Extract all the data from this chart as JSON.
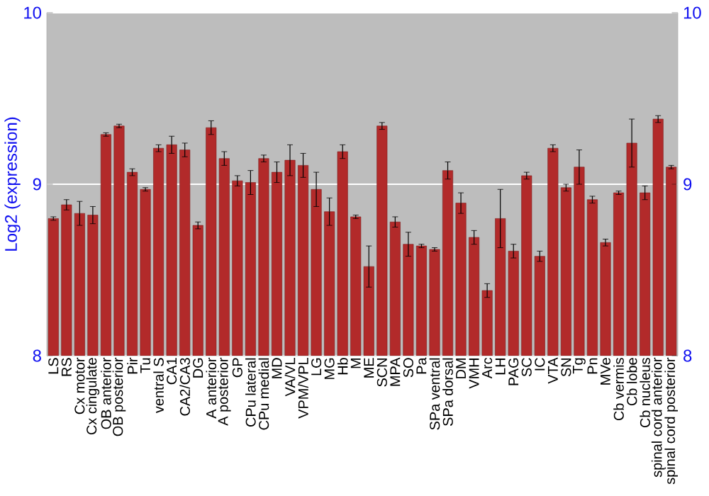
{
  "chart_data": {
    "type": "bar",
    "ylabel": "Log2 (expression)",
    "color": "#b22a2a",
    "grid": "y",
    "categories": [
      "LS",
      "RS",
      "Cx motor",
      "Cx cingulate",
      "OB anterior",
      "OB posterior",
      "Pir",
      "Tu",
      "ventral S",
      "CA1",
      "CA2/CA3",
      "DG",
      "A anterior",
      "A posterior",
      "GP",
      "CPu lateral",
      "CPu medial",
      "MD",
      "VA/VL",
      "VPM/VPL",
      "LG",
      "MG",
      "Hb",
      "M",
      "ME",
      "SCN",
      "MPA",
      "SO",
      "Pa",
      "SPa ventral",
      "SPa dorsal",
      "DM",
      "VMH",
      "Arc",
      "LH",
      "PAG",
      "SC",
      "IC",
      "VTA",
      "SN",
      "Tg",
      "Pn",
      "MVe",
      "Cb vermis",
      "Cb lobe",
      "Cb nucleus",
      "spinal cord anterior",
      "spinal cord posterior"
    ],
    "values": [
      8.8,
      8.88,
      8.83,
      8.82,
      9.29,
      9.34,
      9.07,
      8.97,
      9.21,
      9.23,
      9.2,
      8.76,
      9.33,
      9.15,
      9.02,
      9.01,
      9.15,
      9.07,
      9.14,
      9.11,
      8.97,
      8.84,
      9.19,
      8.81,
      8.52,
      9.34,
      8.78,
      8.65,
      8.64,
      8.62,
      9.08,
      8.89,
      8.69,
      8.38,
      8.8,
      8.61,
      9.05,
      8.58,
      9.21,
      8.98,
      9.1,
      8.91,
      8.66,
      8.95,
      9.24,
      8.95,
      9.38,
      9.1
    ],
    "errors": [
      0.01,
      0.03,
      0.07,
      0.05,
      0.01,
      0.01,
      0.02,
      0.01,
      0.02,
      0.05,
      0.04,
      0.02,
      0.04,
      0.04,
      0.03,
      0.07,
      0.02,
      0.06,
      0.09,
      0.07,
      0.1,
      0.08,
      0.04,
      0.01,
      0.12,
      0.02,
      0.03,
      0.07,
      0.01,
      0.01,
      0.05,
      0.06,
      0.04,
      0.04,
      0.17,
      0.04,
      0.02,
      0.03,
      0.02,
      0.02,
      0.1,
      0.02,
      0.02,
      0.01,
      0.14,
      0.04,
      0.02,
      0.01
    ],
    "ylim": [
      8,
      10
    ],
    "yticks": [
      8,
      9,
      10
    ],
    "y2lim": [
      8,
      10
    ],
    "y2ticks": [
      8,
      9,
      10
    ]
  }
}
